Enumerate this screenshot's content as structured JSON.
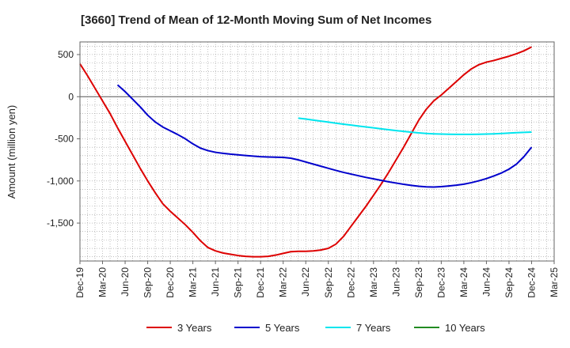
{
  "chart_data": {
    "type": "line",
    "title": "[3660]  Trend of Mean of 12-Month Moving Sum of Net Incomes",
    "ylabel": "Amount (million yen)",
    "xlabel": "",
    "ylim": [
      -1950,
      650
    ],
    "yticks": [
      500,
      0,
      -500,
      -1000,
      -1500
    ],
    "ytick_labels": [
      "500",
      "0",
      "-500",
      "-1,000",
      "-1,500"
    ],
    "xticks": [
      "Dec-19",
      "Mar-20",
      "Jun-20",
      "Sep-20",
      "Dec-20",
      "Mar-21",
      "Jun-21",
      "Sep-21",
      "Dec-21",
      "Mar-22",
      "Jun-22",
      "Sep-22",
      "Dec-22",
      "Mar-23",
      "Jun-23",
      "Sep-23",
      "Dec-23",
      "Mar-24",
      "Jun-24",
      "Sep-24",
      "Dec-24",
      "Mar-25"
    ],
    "grid": true,
    "legend_position": "bottom",
    "series": [
      {
        "name": "3 Years",
        "color": "#dd0000",
        "points": [
          [
            "2019-12",
            390
          ],
          [
            "2020-01",
            250
          ],
          [
            "2020-02",
            100
          ],
          [
            "2020-03",
            -50
          ],
          [
            "2020-04",
            -200
          ],
          [
            "2020-05",
            -370
          ],
          [
            "2020-06",
            -530
          ],
          [
            "2020-07",
            -690
          ],
          [
            "2020-08",
            -850
          ],
          [
            "2020-09",
            -1000
          ],
          [
            "2020-10",
            -1140
          ],
          [
            "2020-11",
            -1270
          ],
          [
            "2020-12",
            -1360
          ],
          [
            "2021-01",
            -1440
          ],
          [
            "2021-02",
            -1520
          ],
          [
            "2021-03",
            -1610
          ],
          [
            "2021-04",
            -1710
          ],
          [
            "2021-05",
            -1790
          ],
          [
            "2021-06",
            -1830
          ],
          [
            "2021-07",
            -1855
          ],
          [
            "2021-08",
            -1870
          ],
          [
            "2021-09",
            -1885
          ],
          [
            "2021-10",
            -1895
          ],
          [
            "2021-11",
            -1900
          ],
          [
            "2021-12",
            -1900
          ],
          [
            "2022-01",
            -1895
          ],
          [
            "2022-02",
            -1880
          ],
          [
            "2022-03",
            -1860
          ],
          [
            "2022-04",
            -1840
          ],
          [
            "2022-05",
            -1835
          ],
          [
            "2022-06",
            -1835
          ],
          [
            "2022-07",
            -1830
          ],
          [
            "2022-08",
            -1820
          ],
          [
            "2022-09",
            -1800
          ],
          [
            "2022-10",
            -1750
          ],
          [
            "2022-11",
            -1660
          ],
          [
            "2022-12",
            -1540
          ],
          [
            "2023-01",
            -1420
          ],
          [
            "2023-02",
            -1300
          ],
          [
            "2023-03",
            -1170
          ],
          [
            "2023-04",
            -1040
          ],
          [
            "2023-05",
            -900
          ],
          [
            "2023-06",
            -750
          ],
          [
            "2023-07",
            -600
          ],
          [
            "2023-08",
            -440
          ],
          [
            "2023-09",
            -280
          ],
          [
            "2023-10",
            -150
          ],
          [
            "2023-11",
            -50
          ],
          [
            "2023-12",
            20
          ],
          [
            "2024-01",
            100
          ],
          [
            "2024-02",
            180
          ],
          [
            "2024-03",
            260
          ],
          [
            "2024-04",
            330
          ],
          [
            "2024-05",
            380
          ],
          [
            "2024-06",
            410
          ],
          [
            "2024-07",
            430
          ],
          [
            "2024-08",
            455
          ],
          [
            "2024-09",
            480
          ],
          [
            "2024-10",
            510
          ],
          [
            "2024-11",
            545
          ],
          [
            "2024-12",
            590
          ]
        ]
      },
      {
        "name": "5 Years",
        "color": "#0000cc",
        "points": [
          [
            "2020-05",
            140
          ],
          [
            "2020-06",
            60
          ],
          [
            "2020-07",
            -30
          ],
          [
            "2020-08",
            -120
          ],
          [
            "2020-09",
            -220
          ],
          [
            "2020-10",
            -300
          ],
          [
            "2020-11",
            -360
          ],
          [
            "2020-12",
            -405
          ],
          [
            "2021-01",
            -450
          ],
          [
            "2021-02",
            -500
          ],
          [
            "2021-03",
            -560
          ],
          [
            "2021-04",
            -610
          ],
          [
            "2021-05",
            -640
          ],
          [
            "2021-06",
            -660
          ],
          [
            "2021-07",
            -672
          ],
          [
            "2021-08",
            -682
          ],
          [
            "2021-09",
            -690
          ],
          [
            "2021-10",
            -698
          ],
          [
            "2021-11",
            -705
          ],
          [
            "2021-12",
            -712
          ],
          [
            "2022-01",
            -716
          ],
          [
            "2022-02",
            -718
          ],
          [
            "2022-03",
            -720
          ],
          [
            "2022-04",
            -730
          ],
          [
            "2022-05",
            -750
          ],
          [
            "2022-06",
            -775
          ],
          [
            "2022-07",
            -800
          ],
          [
            "2022-08",
            -825
          ],
          [
            "2022-09",
            -850
          ],
          [
            "2022-10",
            -875
          ],
          [
            "2022-11",
            -898
          ],
          [
            "2022-12",
            -918
          ],
          [
            "2023-01",
            -938
          ],
          [
            "2023-02",
            -958
          ],
          [
            "2023-03",
            -975
          ],
          [
            "2023-04",
            -993
          ],
          [
            "2023-05",
            -1010
          ],
          [
            "2023-06",
            -1025
          ],
          [
            "2023-07",
            -1040
          ],
          [
            "2023-08",
            -1052
          ],
          [
            "2023-09",
            -1063
          ],
          [
            "2023-10",
            -1070
          ],
          [
            "2023-11",
            -1072
          ],
          [
            "2023-12",
            -1068
          ],
          [
            "2024-01",
            -1060
          ],
          [
            "2024-02",
            -1050
          ],
          [
            "2024-03",
            -1038
          ],
          [
            "2024-04",
            -1020
          ],
          [
            "2024-05",
            -998
          ],
          [
            "2024-06",
            -972
          ],
          [
            "2024-07",
            -940
          ],
          [
            "2024-08",
            -905
          ],
          [
            "2024-09",
            -860
          ],
          [
            "2024-10",
            -800
          ],
          [
            "2024-11",
            -710
          ],
          [
            "2024-12",
            -600
          ]
        ]
      },
      {
        "name": "7 Years",
        "color": "#00e5ee",
        "points": [
          [
            "2022-05",
            -255
          ],
          [
            "2022-06",
            -265
          ],
          [
            "2022-07",
            -278
          ],
          [
            "2022-08",
            -290
          ],
          [
            "2022-09",
            -302
          ],
          [
            "2022-10",
            -314
          ],
          [
            "2022-11",
            -326
          ],
          [
            "2022-12",
            -337
          ],
          [
            "2023-01",
            -348
          ],
          [
            "2023-02",
            -359
          ],
          [
            "2023-03",
            -370
          ],
          [
            "2023-04",
            -381
          ],
          [
            "2023-05",
            -392
          ],
          [
            "2023-06",
            -402
          ],
          [
            "2023-07",
            -412
          ],
          [
            "2023-08",
            -421
          ],
          [
            "2023-09",
            -429
          ],
          [
            "2023-10",
            -436
          ],
          [
            "2023-11",
            -441
          ],
          [
            "2023-12",
            -444
          ],
          [
            "2024-01",
            -446
          ],
          [
            "2024-02",
            -447
          ],
          [
            "2024-03",
            -447
          ],
          [
            "2024-04",
            -447
          ],
          [
            "2024-05",
            -446
          ],
          [
            "2024-06",
            -444
          ],
          [
            "2024-07",
            -441
          ],
          [
            "2024-08",
            -437
          ],
          [
            "2024-09",
            -432
          ],
          [
            "2024-10",
            -427
          ],
          [
            "2024-11",
            -423
          ],
          [
            "2024-12",
            -420
          ]
        ]
      },
      {
        "name": "10 Years",
        "color": "#228b22",
        "points": []
      }
    ]
  }
}
